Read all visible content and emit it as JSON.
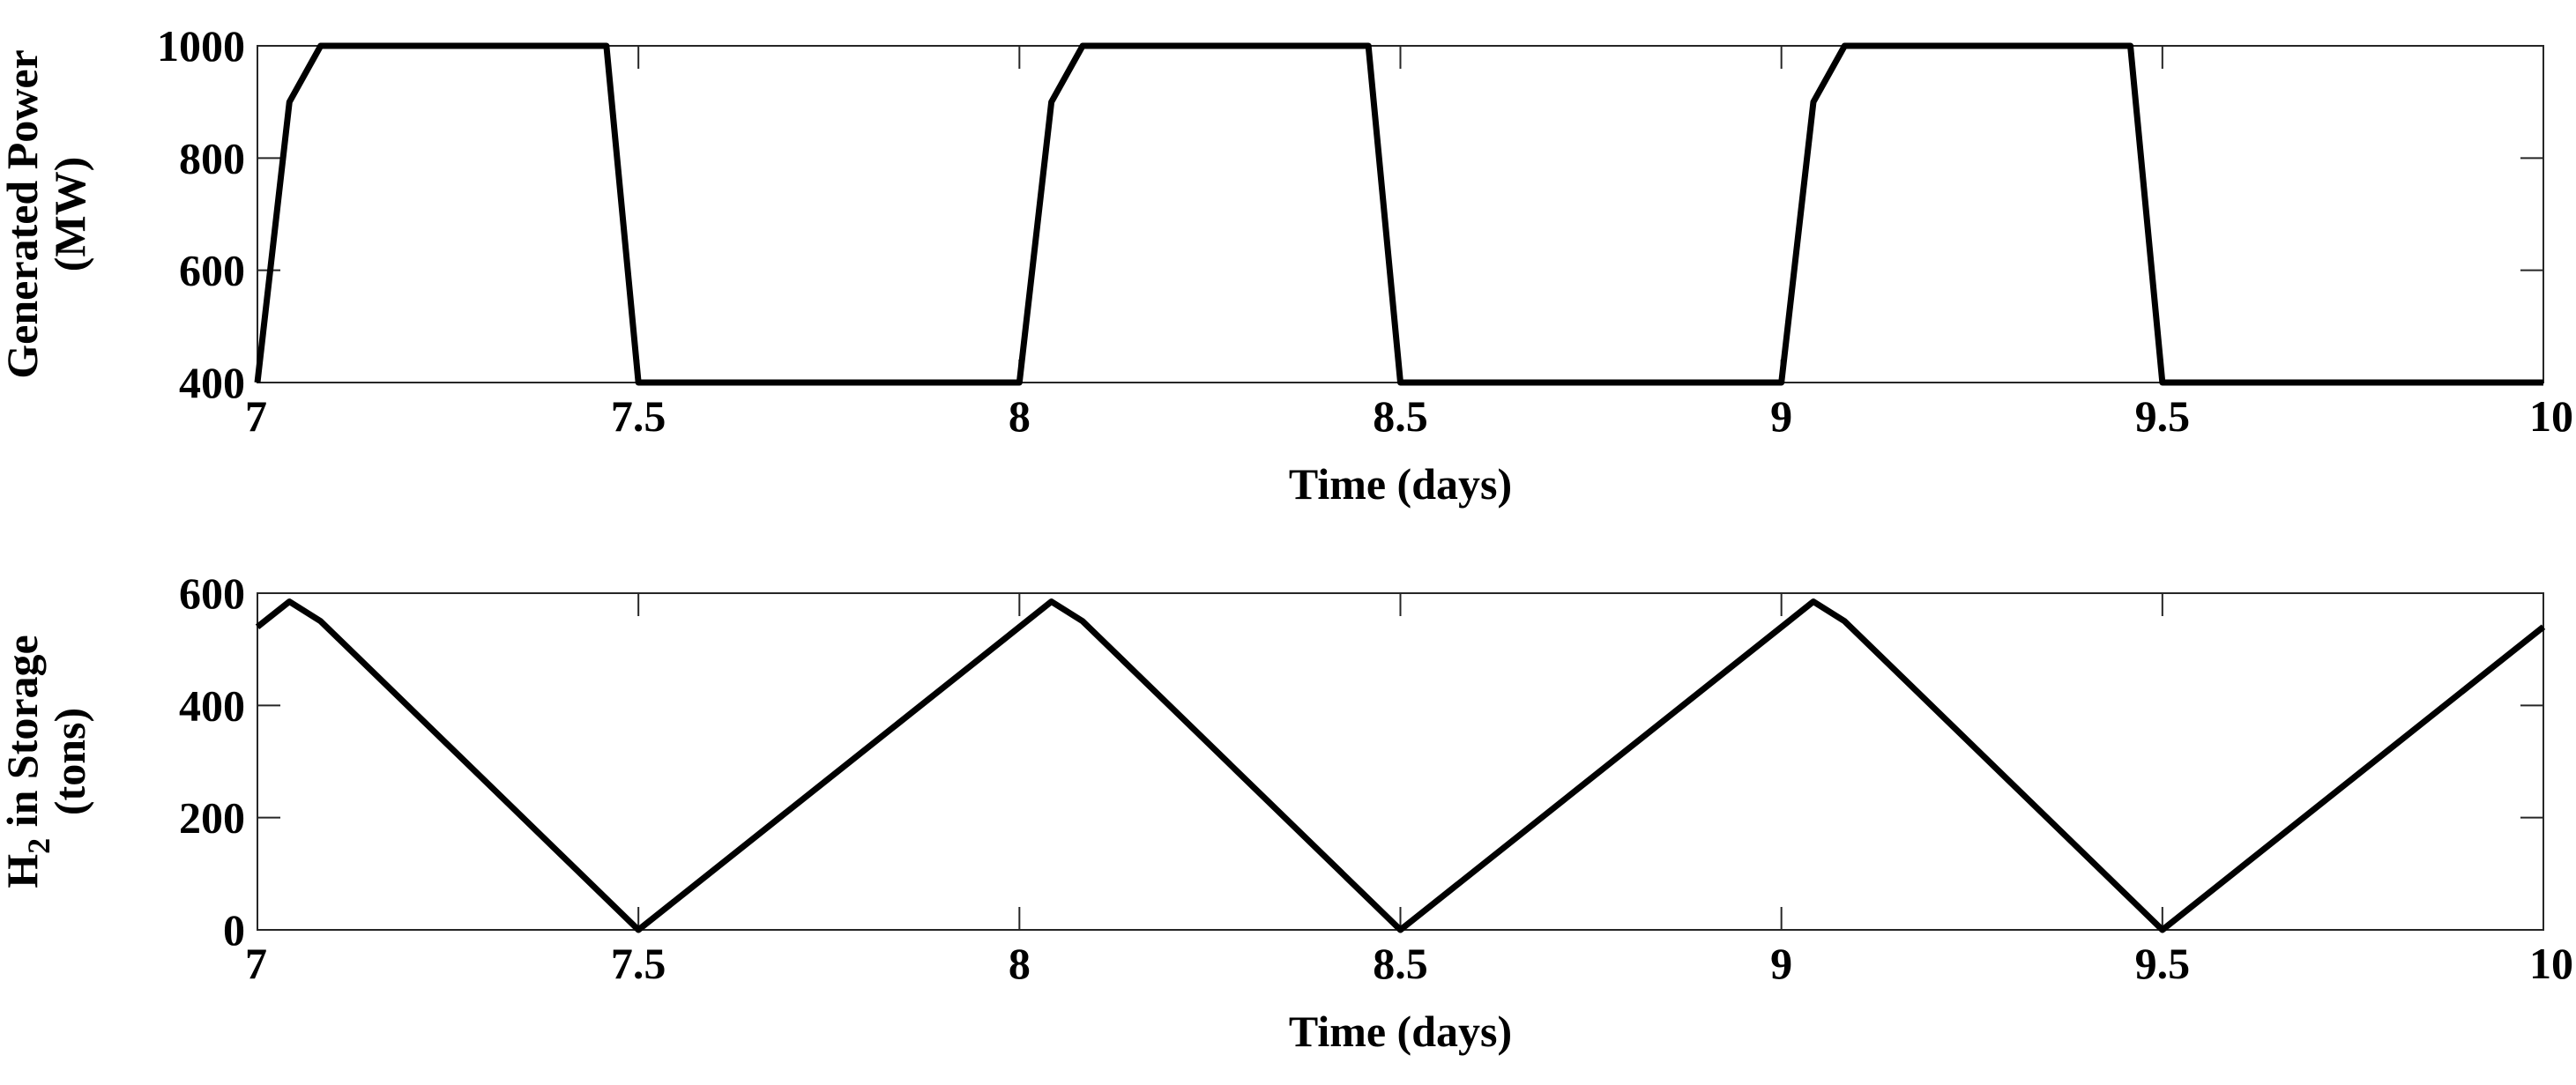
{
  "chart_data": [
    {
      "type": "line",
      "xlabel": "Time (days)",
      "ylabel": [
        "Generated Power",
        "(MW)"
      ],
      "x": [
        7,
        7.042,
        7.083,
        7.458,
        7.5,
        8,
        8.042,
        8.083,
        8.458,
        8.5,
        9,
        9.042,
        9.083,
        9.458,
        9.5,
        10
      ],
      "series": [
        {
          "color": "#000000",
          "values": [
            400,
            900,
            1000,
            1000,
            400,
            400,
            900,
            1000,
            1000,
            400,
            400,
            900,
            1000,
            1000,
            400,
            400
          ]
        }
      ],
      "xlim": [
        7,
        10
      ],
      "xticks": [
        7,
        7.5,
        8,
        8.5,
        9,
        9.5,
        10
      ],
      "ylim": [
        400,
        1000
      ],
      "yticks": [
        400,
        600,
        800,
        1000
      ],
      "grid": false
    },
    {
      "type": "line",
      "xlabel": "Time (days)",
      "ylabel": [
        [
          "H",
          "2",
          " in Storage"
        ],
        "(tons)"
      ],
      "x": [
        7,
        7.042,
        7.083,
        7.5,
        8.042,
        8.083,
        8.5,
        9.042,
        9.083,
        9.5,
        10
      ],
      "series": [
        {
          "color": "#000000",
          "values": [
            540,
            585,
            550,
            0,
            585,
            550,
            0,
            585,
            550,
            0,
            540
          ]
        }
      ],
      "xlim": [
        7,
        10
      ],
      "xticks": [
        7,
        7.5,
        8,
        8.5,
        9,
        9.5,
        10
      ],
      "ylim": [
        0,
        600
      ],
      "yticks": [
        0,
        200,
        400,
        600
      ],
      "grid": false
    }
  ]
}
